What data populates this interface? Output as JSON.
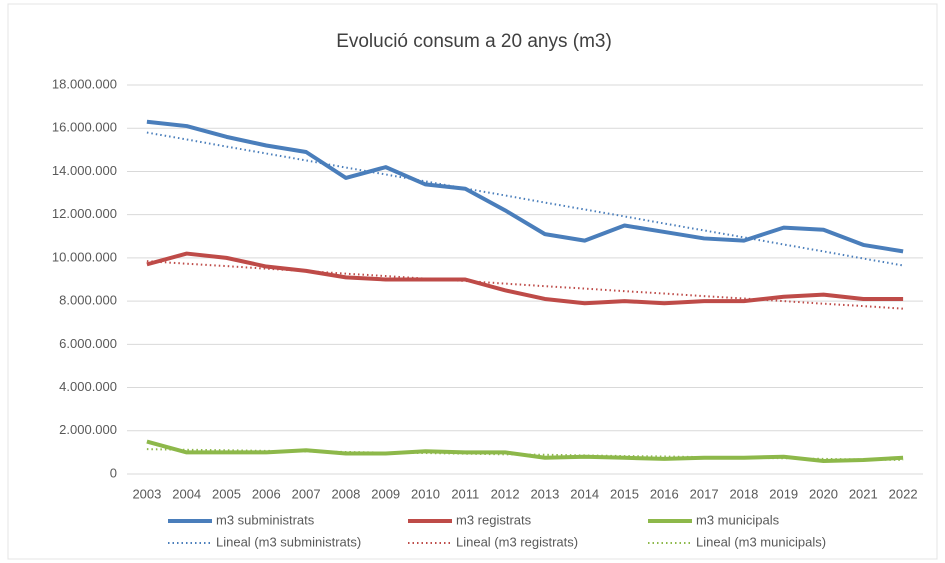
{
  "chart_data": {
    "type": "line",
    "title": "Evolució consum a 20 anys (m3)",
    "categories": [
      "2003",
      "2004",
      "2005",
      "2006",
      "2007",
      "2008",
      "2009",
      "2010",
      "2011",
      "2012",
      "2013",
      "2014",
      "2015",
      "2016",
      "2017",
      "2018",
      "2019",
      "2020",
      "2021",
      "2022"
    ],
    "series": [
      {
        "name": "m3 subministrats",
        "color": "#4a7ebb",
        "dashed": false,
        "values": [
          16300000,
          16100000,
          15600000,
          15200000,
          14900000,
          13700000,
          14200000,
          13400000,
          13200000,
          12200000,
          11100000,
          10800000,
          11500000,
          11200000,
          10900000,
          10800000,
          11400000,
          11300000,
          10600000,
          10300000
        ]
      },
      {
        "name": "m3 registrats",
        "color": "#be4b48",
        "dashed": false,
        "values": [
          9700000,
          10200000,
          10000000,
          9600000,
          9400000,
          9100000,
          9000000,
          9000000,
          9000000,
          8500000,
          8100000,
          7900000,
          8000000,
          7900000,
          8000000,
          8000000,
          8200000,
          8300000,
          8100000,
          8100000
        ]
      },
      {
        "name": "m3 municipals",
        "color": "#8db84a",
        "dashed": false,
        "values": [
          1500000,
          1000000,
          1000000,
          1000000,
          1100000,
          950000,
          950000,
          1050000,
          1000000,
          1000000,
          750000,
          800000,
          750000,
          700000,
          750000,
          750000,
          800000,
          600000,
          650000,
          750000
        ]
      },
      {
        "name": "Lineal (m3 subministrats)",
        "color": "#4a7ebb",
        "dashed": true,
        "values": [
          15800000,
          15480000,
          15150000,
          14830000,
          14510000,
          14180000,
          13860000,
          13540000,
          13210000,
          12890000,
          12560000,
          12240000,
          11920000,
          11590000,
          11270000,
          10950000,
          10620000,
          10300000,
          9970000,
          9650000
        ]
      },
      {
        "name": "Lineal (m3 registrats)",
        "color": "#be4b48",
        "dashed": true,
        "values": [
          9850000,
          9730000,
          9620000,
          9500000,
          9390000,
          9270000,
          9160000,
          9040000,
          8930000,
          8810000,
          8690000,
          8580000,
          8460000,
          8350000,
          8230000,
          8120000,
          8000000,
          7880000,
          7770000,
          7650000
        ]
      },
      {
        "name": "Lineal (m3 municipals)",
        "color": "#8db84a",
        "dashed": true,
        "values": [
          1150000,
          1120000,
          1100000,
          1070000,
          1040000,
          1020000,
          990000,
          970000,
          940000,
          910000,
          890000,
          860000,
          830000,
          810000,
          780000,
          750000,
          730000,
          700000,
          670000,
          650000
        ]
      }
    ],
    "ylim": [
      0,
      18000000
    ],
    "yticks": [
      0,
      {
        "value": 2000000,
        "label": "2.000.000"
      },
      {
        "value": 4000000,
        "label": "4.000.000"
      },
      {
        "value": 6000000,
        "label": "6.000.000"
      },
      {
        "value": 8000000,
        "label": "8.000.000"
      },
      {
        "value": 10000000,
        "label": "10.000.000"
      },
      {
        "value": 12000000,
        "label": "12.000.000"
      },
      {
        "value": 14000000,
        "label": "14.000.000"
      },
      {
        "value": 16000000,
        "label": "16.000.000"
      },
      {
        "value": 18000000,
        "label": "18.000.000"
      }
    ],
    "grid": true,
    "legend": "bottom"
  }
}
